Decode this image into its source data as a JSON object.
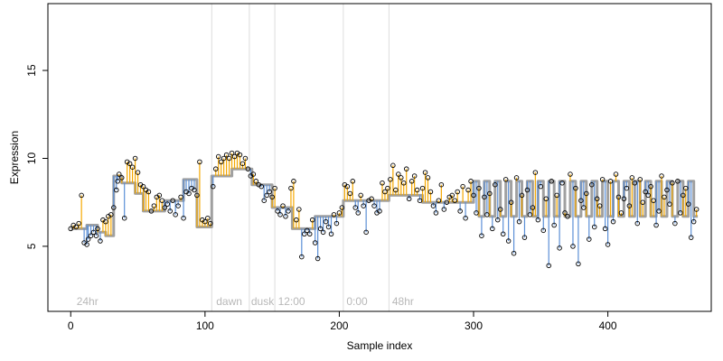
{
  "chart_data": {
    "type": "scatter",
    "xlabel": "Sample index",
    "ylabel": "Expression",
    "xlim": [
      -17,
      477
    ],
    "ylim": [
      1.3,
      18.8
    ],
    "xticks": [
      0,
      100,
      200,
      300,
      400
    ],
    "yticks": [
      5,
      10,
      15
    ],
    "grid": false,
    "region_lines": [
      105,
      133,
      152,
      203,
      237
    ],
    "region_labels": [
      {
        "x": 3,
        "text": "24hr"
      },
      {
        "x": 107,
        "text": "dawn"
      },
      {
        "x": 133,
        "text": "dusk"
      },
      {
        "x": 153,
        "text": "12:00"
      },
      {
        "x": 204,
        "text": "0:00"
      },
      {
        "x": 238,
        "text": "48hr"
      }
    ],
    "colors": {
      "fitted": "#a0a0a0",
      "above": "#f5a800",
      "below": "#5b8fd6",
      "point_stroke": "#000000",
      "region_line": "#dcdcdc"
    },
    "fitted_segments": [
      {
        "x0": 0,
        "x1": 12,
        "y": 6.0
      },
      {
        "x0": 12,
        "x1": 20,
        "y": 6.2
      },
      {
        "x0": 20,
        "x1": 26,
        "y": 5.8
      },
      {
        "x0": 26,
        "x1": 32,
        "y": 5.6
      },
      {
        "x0": 32,
        "x1": 38,
        "y": 9.0
      },
      {
        "x0": 38,
        "x1": 48,
        "y": 8.6
      },
      {
        "x0": 48,
        "x1": 54,
        "y": 8.0
      },
      {
        "x0": 54,
        "x1": 70,
        "y": 7.0
      },
      {
        "x0": 70,
        "x1": 84,
        "y": 7.6
      },
      {
        "x0": 84,
        "x1": 94,
        "y": 8.8
      },
      {
        "x0": 94,
        "x1": 105,
        "y": 6.1
      },
      {
        "x0": 105,
        "x1": 120,
        "y": 9.0
      },
      {
        "x0": 120,
        "x1": 135,
        "y": 9.4
      },
      {
        "x0": 135,
        "x1": 150,
        "y": 8.5
      },
      {
        "x0": 150,
        "x1": 165,
        "y": 7.2
      },
      {
        "x0": 165,
        "x1": 182,
        "y": 6.0
      },
      {
        "x0": 182,
        "x1": 203,
        "y": 6.7
      },
      {
        "x0": 203,
        "x1": 237,
        "y": 7.6
      },
      {
        "x0": 237,
        "x1": 262,
        "y": 7.9
      },
      {
        "x0": 262,
        "x1": 300,
        "y": 7.5
      }
    ],
    "oscillation": {
      "x_start": 300,
      "x_end": 467,
      "period": 8,
      "high": 8.7,
      "low": 6.7
    },
    "points": [
      [
        0,
        6.0
      ],
      [
        2,
        6.2
      ],
      [
        4,
        6.1
      ],
      [
        6,
        6.3
      ],
      [
        8,
        7.9
      ],
      [
        10,
        5.2
      ],
      [
        12,
        5.1
      ],
      [
        13,
        5.4
      ],
      [
        15,
        5.6
      ],
      [
        17,
        5.8
      ],
      [
        19,
        5.6
      ],
      [
        20,
        6.0
      ],
      [
        22,
        5.3
      ],
      [
        24,
        6.5
      ],
      [
        26,
        6.4
      ],
      [
        28,
        6.7
      ],
      [
        30,
        6.8
      ],
      [
        32,
        7.2
      ],
      [
        34,
        8.2
      ],
      [
        35,
        8.7
      ],
      [
        36,
        9.1
      ],
      [
        38,
        8.9
      ],
      [
        40,
        6.6
      ],
      [
        42,
        9.8
      ],
      [
        44,
        9.7
      ],
      [
        46,
        9.5
      ],
      [
        48,
        10.0
      ],
      [
        50,
        9.2
      ],
      [
        52,
        8.5
      ],
      [
        54,
        8.4
      ],
      [
        56,
        8.2
      ],
      [
        58,
        8.1
      ],
      [
        60,
        7.0
      ],
      [
        62,
        7.3
      ],
      [
        64,
        7.8
      ],
      [
        66,
        7.9
      ],
      [
        68,
        7.6
      ],
      [
        70,
        7.2
      ],
      [
        72,
        7.4
      ],
      [
        74,
        7.0
      ],
      [
        76,
        7.6
      ],
      [
        78,
        6.8
      ],
      [
        80,
        7.3
      ],
      [
        82,
        7.8
      ],
      [
        84,
        6.6
      ],
      [
        86,
        8.1
      ],
      [
        88,
        8.0
      ],
      [
        90,
        8.3
      ],
      [
        92,
        8.2
      ],
      [
        94,
        7.9
      ],
      [
        96,
        9.8
      ],
      [
        98,
        6.5
      ],
      [
        100,
        6.4
      ],
      [
        102,
        6.6
      ],
      [
        104,
        6.3
      ],
      [
        106,
        8.4
      ],
      [
        108,
        9.4
      ],
      [
        110,
        10.1
      ],
      [
        112,
        9.8
      ],
      [
        114,
        10.0
      ],
      [
        116,
        10.2
      ],
      [
        118,
        10.0
      ],
      [
        120,
        10.3
      ],
      [
        122,
        10.1
      ],
      [
        124,
        10.3
      ],
      [
        126,
        10.2
      ],
      [
        128,
        9.7
      ],
      [
        130,
        10.0
      ],
      [
        132,
        9.4
      ],
      [
        134,
        9.0
      ],
      [
        136,
        9.1
      ],
      [
        138,
        8.7
      ],
      [
        140,
        8.5
      ],
      [
        142,
        8.4
      ],
      [
        144,
        7.6
      ],
      [
        146,
        7.9
      ],
      [
        148,
        8.1
      ],
      [
        150,
        7.8
      ],
      [
        152,
        8.3
      ],
      [
        154,
        7.0
      ],
      [
        156,
        6.8
      ],
      [
        158,
        7.3
      ],
      [
        160,
        6.7
      ],
      [
        162,
        7.0
      ],
      [
        164,
        8.3
      ],
      [
        166,
        8.7
      ],
      [
        168,
        6.5
      ],
      [
        170,
        7.1
      ],
      [
        172,
        4.4
      ],
      [
        174,
        5.7
      ],
      [
        176,
        5.9
      ],
      [
        178,
        5.7
      ],
      [
        180,
        6.5
      ],
      [
        182,
        5.2
      ],
      [
        184,
        4.3
      ],
      [
        186,
        6.0
      ],
      [
        188,
        5.8
      ],
      [
        190,
        6.4
      ],
      [
        192,
        6.1
      ],
      [
        194,
        5.7
      ],
      [
        196,
        6.8
      ],
      [
        198,
        6.3
      ],
      [
        200,
        6.9
      ],
      [
        202,
        7.2
      ],
      [
        204,
        8.5
      ],
      [
        206,
        8.4
      ],
      [
        208,
        8.0
      ],
      [
        210,
        8.7
      ],
      [
        212,
        7.2
      ],
      [
        214,
        6.9
      ],
      [
        216,
        7.9
      ],
      [
        218,
        7.3
      ],
      [
        220,
        5.8
      ],
      [
        222,
        7.6
      ],
      [
        224,
        7.7
      ],
      [
        226,
        7.3
      ],
      [
        228,
        6.9
      ],
      [
        230,
        7.0
      ],
      [
        232,
        8.6
      ],
      [
        234,
        8.1
      ],
      [
        236,
        8.3
      ],
      [
        238,
        8.8
      ],
      [
        240,
        9.6
      ],
      [
        242,
        8.2
      ],
      [
        244,
        9.1
      ],
      [
        246,
        8.9
      ],
      [
        248,
        8.6
      ],
      [
        250,
        9.4
      ],
      [
        252,
        7.7
      ],
      [
        254,
        8.7
      ],
      [
        256,
        9.0
      ],
      [
        258,
        8.2
      ],
      [
        260,
        7.6
      ],
      [
        262,
        8.3
      ],
      [
        264,
        9.2
      ],
      [
        266,
        8.9
      ],
      [
        268,
        8.1
      ],
      [
        270,
        7.3
      ],
      [
        272,
        6.9
      ],
      [
        274,
        7.6
      ],
      [
        276,
        8.5
      ],
      [
        278,
        7.1
      ],
      [
        280,
        7.5
      ],
      [
        282,
        7.8
      ],
      [
        284,
        7.9
      ],
      [
        286,
        7.6
      ],
      [
        288,
        8.1
      ],
      [
        290,
        7.0
      ],
      [
        292,
        8.4
      ],
      [
        294,
        6.6
      ],
      [
        296,
        8.2
      ],
      [
        298,
        8.7
      ],
      [
        300,
        7.9
      ],
      [
        302,
        6.9
      ],
      [
        304,
        8.3
      ],
      [
        306,
        5.6
      ],
      [
        308,
        7.8
      ],
      [
        310,
        6.8
      ],
      [
        312,
        8.0
      ],
      [
        314,
        6.0
      ],
      [
        316,
        8.5
      ],
      [
        318,
        6.5
      ],
      [
        320,
        7.1
      ],
      [
        322,
        5.7
      ],
      [
        324,
        8.8
      ],
      [
        326,
        5.3
      ],
      [
        328,
        7.5
      ],
      [
        330,
        4.6
      ],
      [
        332,
        8.9
      ],
      [
        334,
        6.4
      ],
      [
        336,
        7.9
      ],
      [
        338,
        5.5
      ],
      [
        340,
        8.2
      ],
      [
        342,
        6.8
      ],
      [
        344,
        7.2
      ],
      [
        346,
        9.2
      ],
      [
        348,
        6.5
      ],
      [
        350,
        8.4
      ],
      [
        352,
        5.9
      ],
      [
        354,
        7.7
      ],
      [
        356,
        3.9
      ],
      [
        358,
        8.7
      ],
      [
        360,
        6.2
      ],
      [
        362,
        7.9
      ],
      [
        364,
        4.9
      ],
      [
        366,
        8.6
      ],
      [
        368,
        6.9
      ],
      [
        370,
        6.7
      ],
      [
        372,
        9.1
      ],
      [
        374,
        5.0
      ],
      [
        376,
        8.3
      ],
      [
        378,
        4.0
      ],
      [
        380,
        7.6
      ],
      [
        382,
        7.2
      ],
      [
        384,
        8.0
      ],
      [
        386,
        5.4
      ],
      [
        388,
        8.5
      ],
      [
        390,
        6.1
      ],
      [
        392,
        7.7
      ],
      [
        394,
        7.3
      ],
      [
        396,
        8.8
      ],
      [
        398,
        6.0
      ],
      [
        400,
        5.1
      ],
      [
        402,
        8.7
      ],
      [
        404,
        6.4
      ],
      [
        406,
        9.1
      ],
      [
        408,
        7.8
      ],
      [
        410,
        6.9
      ],
      [
        412,
        7.7
      ],
      [
        414,
        8.3
      ],
      [
        416,
        7.3
      ],
      [
        418,
        8.9
      ],
      [
        420,
        8.6
      ],
      [
        422,
        6.3
      ],
      [
        424,
        8.8
      ],
      [
        426,
        7.5
      ],
      [
        428,
        8.1
      ],
      [
        430,
        7.9
      ],
      [
        432,
        8.4
      ],
      [
        434,
        7.6
      ],
      [
        436,
        6.2
      ],
      [
        438,
        7.0
      ],
      [
        440,
        9.0
      ],
      [
        442,
        7.8
      ],
      [
        444,
        8.2
      ],
      [
        446,
        7.4
      ],
      [
        448,
        8.6
      ],
      [
        450,
        6.3
      ],
      [
        452,
        8.7
      ],
      [
        454,
        6.9
      ],
      [
        456,
        7.9
      ],
      [
        458,
        8.3
      ],
      [
        460,
        7.4
      ],
      [
        462,
        5.5
      ],
      [
        464,
        6.4
      ],
      [
        466,
        7.1
      ]
    ]
  }
}
